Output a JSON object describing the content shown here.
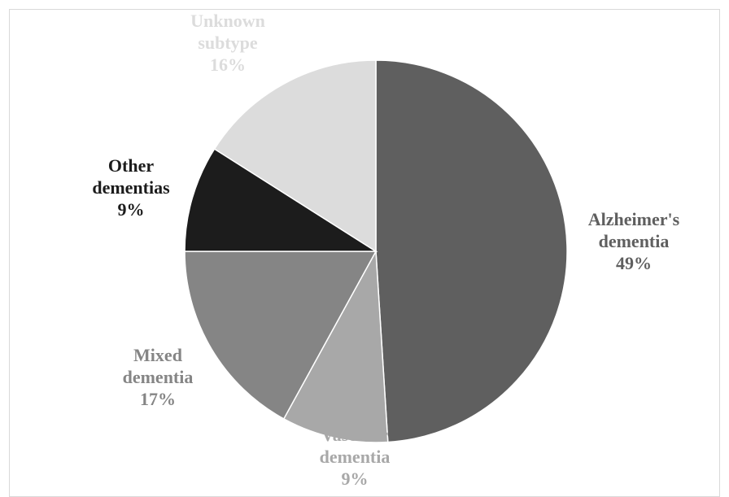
{
  "chart_data": {
    "type": "pie",
    "slices": [
      {
        "name": "Alzheimer's dementia",
        "label_lines": [
          "Alzheimer's",
          "dementia"
        ],
        "value": 49,
        "value_label": "49%",
        "color": "#5f5f5f",
        "label_color": "#5f5f5f"
      },
      {
        "name": "Vascular dementia",
        "label_lines": [
          "Vascular",
          "dementia"
        ],
        "value": 9,
        "value_label": "9%",
        "color": "#a8a8a8",
        "label_color": "#a8a8a8"
      },
      {
        "name": "Mixed dementia",
        "label_lines": [
          "Mixed",
          "dementia"
        ],
        "value": 17,
        "value_label": "17%",
        "color": "#858585",
        "label_color": "#858585"
      },
      {
        "name": "Other dementias",
        "label_lines": [
          "Other",
          "dementias"
        ],
        "value": 9,
        "value_label": "9%",
        "color": "#1c1c1c",
        "label_color": "#1c1c1c"
      },
      {
        "name": "Unknown subtype",
        "label_lines": [
          "Unknown",
          "subtype"
        ],
        "value": 16,
        "value_label": "16%",
        "color": "#dcdcdc",
        "label_color": "#dcdcdc"
      }
    ],
    "start_angle": "12 o'clock",
    "direction": "clockwise",
    "legend": "none"
  }
}
